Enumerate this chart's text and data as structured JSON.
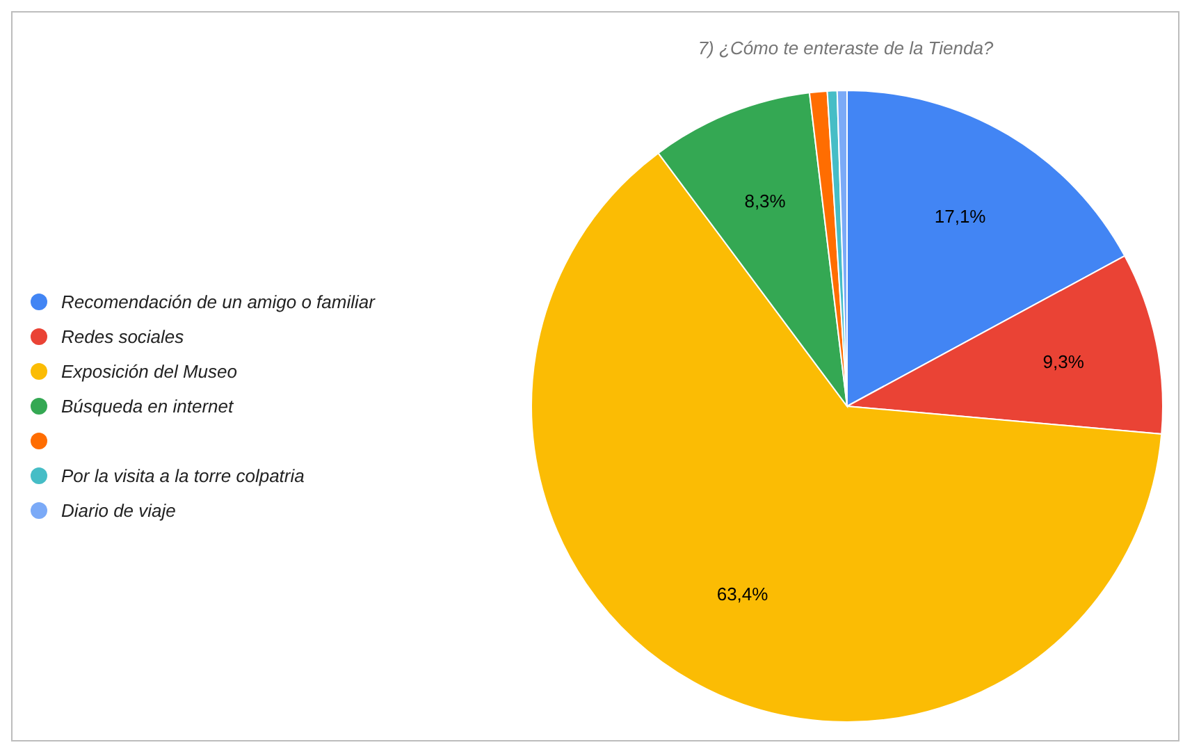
{
  "chart_data": {
    "type": "pie",
    "title": "7) ¿Cómo te enteraste de la Tienda?",
    "categories": [
      "Recomendación de un amigo o familiar",
      "Redes sociales",
      "Exposición del Museo",
      "Búsqueda en internet",
      null,
      "Por la visita a la torre colpatria",
      "Diario de viaje"
    ],
    "values": [
      17.1,
      9.3,
      63.4,
      8.3,
      0.9,
      0.5,
      0.5
    ],
    "colors": [
      "#4285f4",
      "#ea4335",
      "#fbbc04",
      "#34a853",
      "#ff6d01",
      "#46bdc6",
      "#7baaf7"
    ],
    "value_labels": [
      "17,1%",
      "9,3%",
      "63,4%",
      "8,3%",
      null,
      null,
      null
    ],
    "legend": "left"
  }
}
